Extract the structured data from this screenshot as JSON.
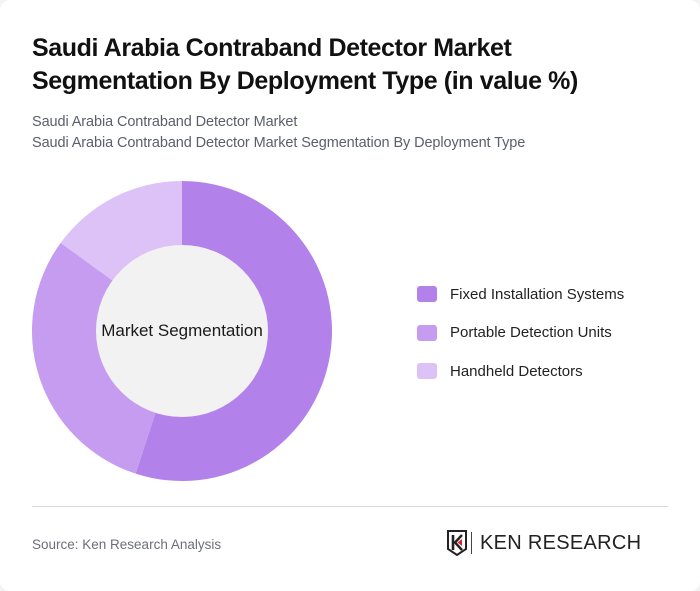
{
  "header": {
    "title": "Saudi Arabia Contraband Detector Market Segmentation By Deployment Type (in value %)",
    "subtitle_1": "Saudi Arabia Contraband Detector Market",
    "subtitle_2": "Saudi Arabia Contraband Detector Market Segmentation By Deployment Type"
  },
  "chart": {
    "center_label": "Market Segmentation"
  },
  "legend": [
    {
      "label": "Fixed Installation Systems",
      "color": "#b381ea"
    },
    {
      "label": "Portable Detection Units",
      "color": "#c59cef"
    },
    {
      "label": "Handheld Detectors",
      "color": "#dcc2f6"
    }
  ],
  "footer": {
    "source": "Source: Ken Research Analysis",
    "logo_text": "KEN RESEARCH"
  },
  "chart_data": {
    "type": "pie",
    "subtype": "donut",
    "title": "Saudi Arabia Contraband Detector Market Segmentation By Deployment Type (in value %)",
    "center_label": "Market Segmentation",
    "categories": [
      "Fixed Installation Systems",
      "Portable Detection Units",
      "Handheld Detectors"
    ],
    "values": [
      55,
      30,
      15
    ],
    "colors": [
      "#b381ea",
      "#c59cef",
      "#dcc2f6"
    ],
    "unit": "%",
    "legend_position": "right",
    "start_angle": "top, clockwise"
  }
}
